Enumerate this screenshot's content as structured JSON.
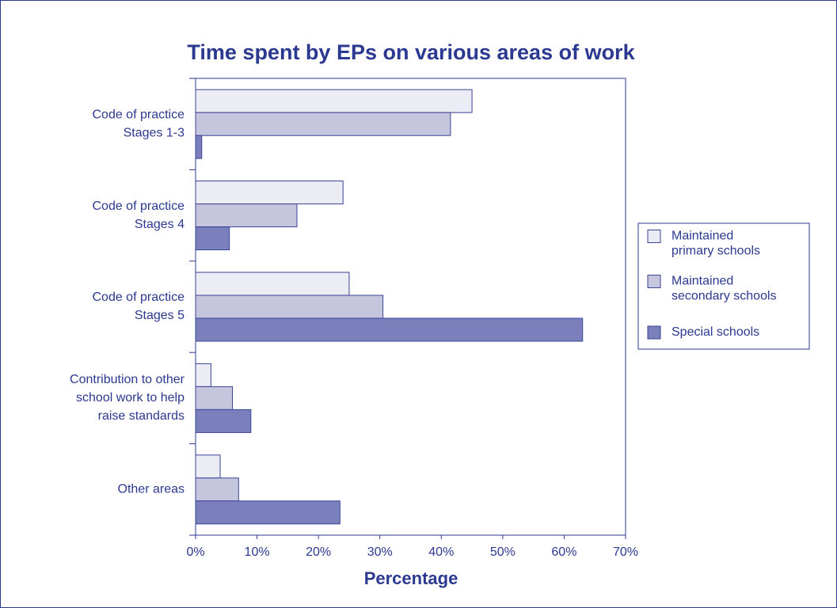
{
  "chart_data": {
    "type": "hbar",
    "title": "Time spent by EPs on various areas of work",
    "x_label": "Percentage",
    "categories": [
      [
        "Code of practice",
        "Stages 1-3"
      ],
      [
        "Code of practice",
        "Stages 4"
      ],
      [
        "Code of practice",
        "Stages 5"
      ],
      [
        "Contribution to other",
        "school work to help",
        "raise standards"
      ],
      [
        "Other areas"
      ]
    ],
    "series": [
      {
        "name": [
          "Maintained",
          "primary schools"
        ],
        "color": "#ececf5",
        "values": [
          45,
          24,
          25,
          2.5,
          4
        ]
      },
      {
        "name": [
          "Maintained",
          "secondary schools"
        ],
        "color": "#c5c5de",
        "values": [
          41.5,
          16.5,
          30.5,
          6,
          7
        ]
      },
      {
        "name": [
          "Special schools"
        ],
        "color": "#7b80bc",
        "values": [
          1,
          5.5,
          63,
          9,
          23.5
        ]
      }
    ],
    "xlim": [
      0,
      70
    ],
    "xticks": [
      {
        "value": 0,
        "label": "0%"
      },
      {
        "value": 10,
        "label": "10%"
      },
      {
        "value": 20,
        "label": "20%"
      },
      {
        "value": 30,
        "label": "30%"
      },
      {
        "value": 40,
        "label": "40%"
      },
      {
        "value": 50,
        "label": "50%"
      },
      {
        "value": 60,
        "label": "60%"
      },
      {
        "value": 70,
        "label": "70%"
      }
    ],
    "legend": "right"
  }
}
